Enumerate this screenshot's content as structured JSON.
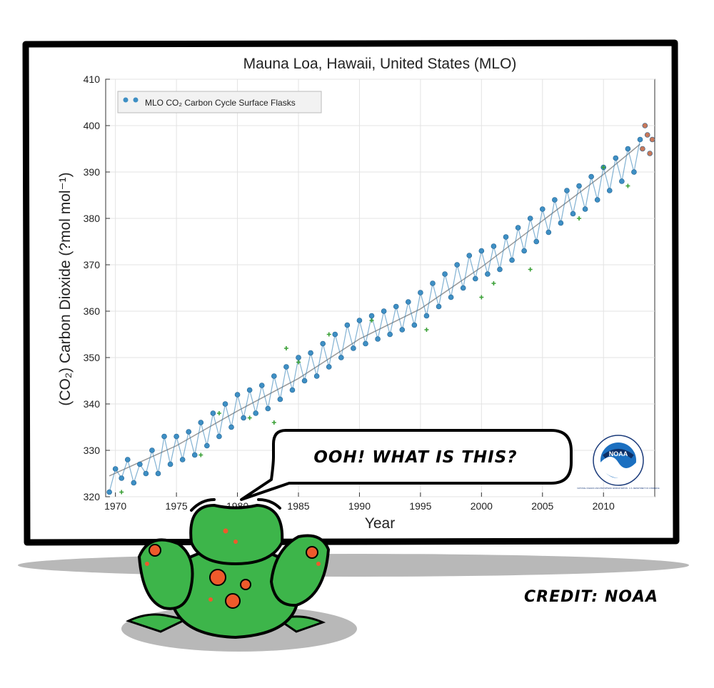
{
  "chart_data": {
    "type": "scatter",
    "title": "Mauna Loa, Hawaii, United States (MLO)",
    "xlabel": "Year",
    "ylabel": "(CO₂) Carbon Dioxide (?mol mol⁻¹)",
    "xlim": [
      1969.2,
      2014.2
    ],
    "ylim": [
      320,
      410
    ],
    "xticks": [
      "1970",
      "1975",
      "1980",
      "1985",
      "1990",
      "1995",
      "2000",
      "2005",
      "2010"
    ],
    "xtick_values": [
      1970,
      1975,
      1980,
      1985,
      1990,
      1995,
      2000,
      2005,
      2010
    ],
    "yticks": [
      "320",
      "330",
      "340",
      "350",
      "360",
      "370",
      "380",
      "390",
      "400",
      "410"
    ],
    "ytick_values": [
      320,
      330,
      340,
      350,
      360,
      370,
      380,
      390,
      400,
      410
    ],
    "grid": true,
    "legend_position": "top-left",
    "legend": [
      "MLO CO₂ Carbon Cycle Surface Flasks"
    ],
    "series": [
      {
        "name": "MLO CO₂ Carbon Cycle Surface Flasks",
        "role": "flask-samples",
        "color": "#3e8fc4",
        "x": [
          1969.5,
          1970.0,
          1970.5,
          1971.0,
          1971.5,
          1972.0,
          1972.5,
          1973.0,
          1973.5,
          1974.0,
          1974.5,
          1975.0,
          1975.5,
          1976.0,
          1976.5,
          1977.0,
          1977.5,
          1978.0,
          1978.5,
          1979.0,
          1979.5,
          1980.0,
          1980.5,
          1981.0,
          1981.5,
          1982.0,
          1982.5,
          1983.0,
          1983.5,
          1984.0,
          1984.5,
          1985.0,
          1985.5,
          1986.0,
          1986.5,
          1987.0,
          1987.5,
          1988.0,
          1988.5,
          1989.0,
          1989.5,
          1990.0,
          1990.5,
          1991.0,
          1991.5,
          1992.0,
          1992.5,
          1993.0,
          1993.5,
          1994.0,
          1994.5,
          1995.0,
          1995.5,
          1996.0,
          1996.5,
          1997.0,
          1997.5,
          1998.0,
          1998.5,
          1999.0,
          1999.5,
          2000.0,
          2000.5,
          2001.0,
          2001.5,
          2002.0,
          2002.5,
          2003.0,
          2003.5,
          2004.0,
          2004.5,
          2005.0,
          2005.5,
          2006.0,
          2006.5,
          2007.0,
          2007.5,
          2008.0,
          2008.5,
          2009.0,
          2009.5,
          2010.0,
          2010.5,
          2011.0,
          2011.5,
          2012.0,
          2012.5,
          2013.0
        ],
        "y": [
          321,
          326,
          324,
          328,
          323,
          327,
          325,
          330,
          325,
          333,
          327,
          333,
          328,
          334,
          329,
          336,
          331,
          338,
          333,
          340,
          335,
          342,
          337,
          343,
          338,
          344,
          339,
          346,
          341,
          348,
          343,
          350,
          345,
          351,
          346,
          353,
          348,
          355,
          350,
          357,
          352,
          358,
          353,
          359,
          354,
          360,
          355,
          361,
          356,
          362,
          357,
          364,
          359,
          366,
          361,
          368,
          363,
          370,
          365,
          372,
          367,
          373,
          368,
          374,
          369,
          376,
          371,
          378,
          373,
          380,
          375,
          382,
          377,
          384,
          379,
          386,
          381,
          387,
          382,
          389,
          384,
          391,
          386,
          393,
          388,
          395,
          390,
          397
        ]
      },
      {
        "name": "",
        "role": "2013 samples",
        "color": "#c8785a",
        "x": [
          2013.2,
          2013.4,
          2013.6,
          2013.8,
          2014.0
        ],
        "y": [
          395,
          400,
          398,
          394,
          397
        ]
      },
      {
        "name": "",
        "role": "flagged samples",
        "color": "#3aa036",
        "x": [
          1970.5,
          1977.0,
          1978.5,
          1981.0,
          1983.0,
          1984.0,
          1985.0,
          1987.5,
          1991.0,
          1995.5,
          2000.0,
          2001.0,
          2004.0,
          2008.0,
          2010.0,
          2012.0
        ],
        "y": [
          321,
          329,
          338,
          337,
          336,
          352,
          349,
          355,
          358,
          356,
          363,
          366,
          369,
          380,
          391,
          387
        ]
      },
      {
        "name": "",
        "role": "trend",
        "color": "#999999",
        "x": [
          1969.5,
          1975.0,
          1980.0,
          1985.0,
          1990.0,
          1995.0,
          2000.0,
          2005.0,
          2010.0,
          2013.0
        ],
        "y": [
          324.5,
          331.0,
          338.5,
          345.5,
          354.0,
          360.5,
          369.5,
          379.5,
          389.5,
          396.0
        ]
      }
    ]
  },
  "overlay": {
    "speech_bubble": "OOH! WHAT IS THIS?",
    "credit": "CREDIT: NOAA",
    "logo_text": "NOAA",
    "logo_ring_text": "NATIONAL OCEANIC AND ATMOSPHERIC ADMINISTRATION · U.S. DEPARTMENT OF COMMERCE"
  },
  "colors": {
    "frog_green": "#3db54a",
    "frog_spot": "#ee5a2b",
    "flask_blue": "#3e8fc4",
    "flag_green": "#3aa036"
  }
}
